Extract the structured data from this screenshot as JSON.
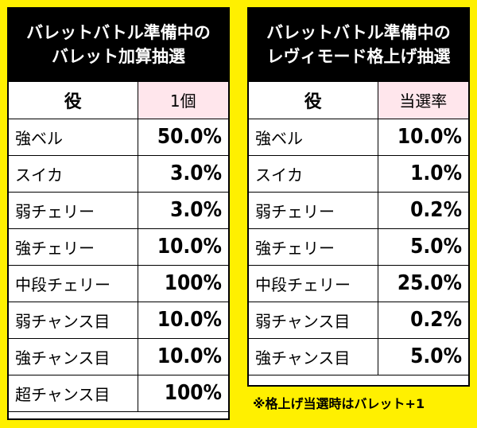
{
  "left_table": {
    "title_line1": "バレットバトル準備中の",
    "title_line2": "バレット加算抽選",
    "header_role": "役",
    "header_value": "1個",
    "rows": [
      {
        "role": "強ベル",
        "value": "50.0%"
      },
      {
        "role": "スイカ",
        "value": "3.0%"
      },
      {
        "role": "弱チェリー",
        "value": "3.0%"
      },
      {
        "role": "強チェリー",
        "value": "10.0%"
      },
      {
        "role": "中段チェリー",
        "value": "100%"
      },
      {
        "role": "弱チャンス目",
        "value": "10.0%"
      },
      {
        "role": "強チャンス目",
        "value": "10.0%"
      },
      {
        "role": "超チャンス目",
        "value": "100%"
      }
    ]
  },
  "right_table": {
    "title_line1": "バレットバトル準備中の",
    "title_line2": "レヴィモード格上げ抽選",
    "header_role": "役",
    "header_value": "当選率",
    "rows": [
      {
        "role": "強ベル",
        "value": "10.0%"
      },
      {
        "role": "スイカ",
        "value": "1.0%"
      },
      {
        "role": "弱チェリー",
        "value": "0.2%"
      },
      {
        "role": "強チェリー",
        "value": "5.0%"
      },
      {
        "role": "中段チェリー",
        "value": "25.0%"
      },
      {
        "role": "弱チャンス目",
        "value": "0.2%"
      },
      {
        "role": "強チャンス目",
        "value": "5.0%"
      }
    ]
  },
  "footnote": "※格上げ当選時はバレット+1",
  "colors": {
    "background": "#fff000",
    "title_bg": "#000000",
    "header_rate_bg": "#ffe6ec"
  }
}
